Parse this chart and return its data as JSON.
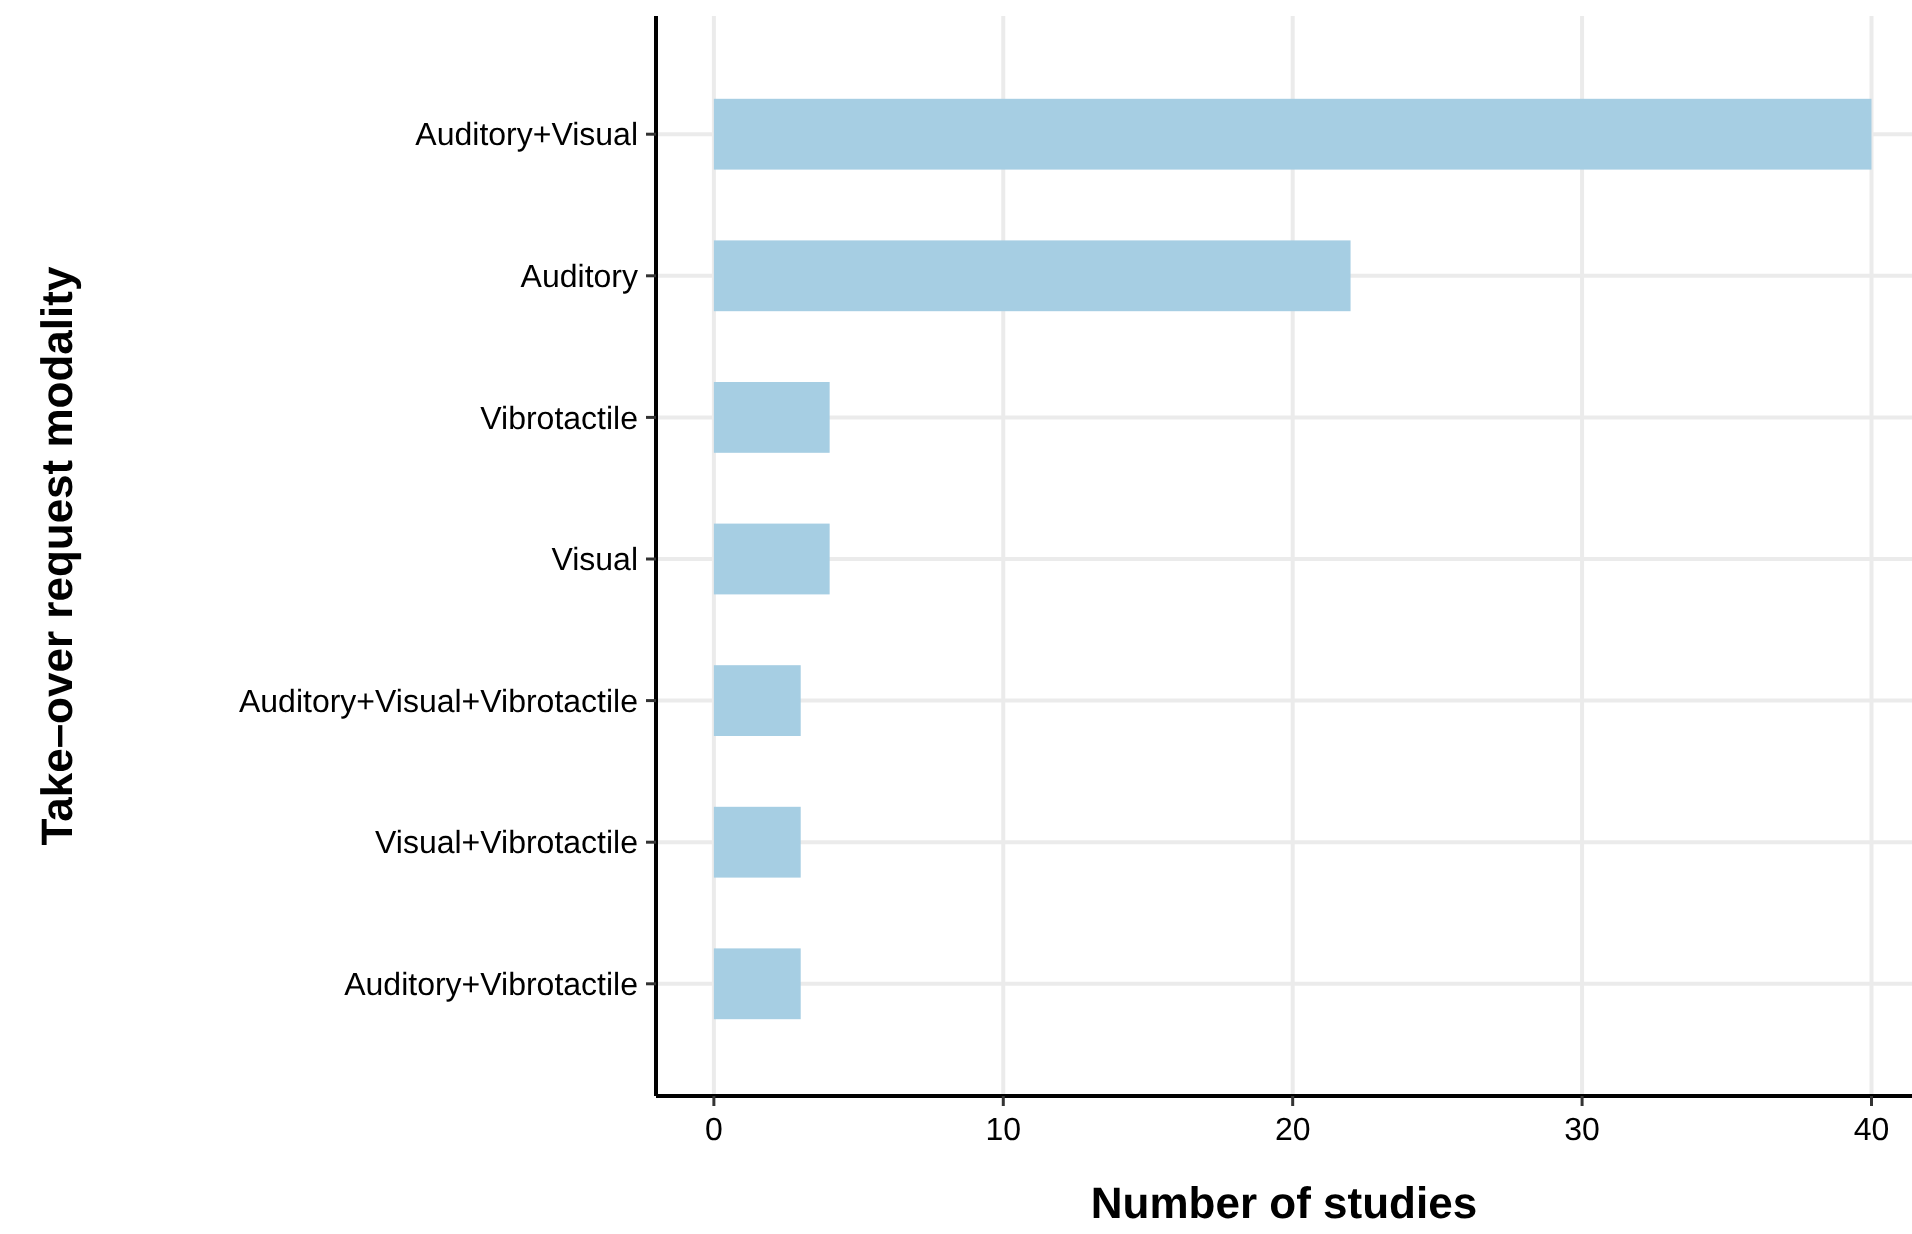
{
  "chart_data": {
    "type": "bar",
    "orientation": "horizontal",
    "xlabel": "Number of studies",
    "ylabel": "Take–over request modality",
    "categories": [
      "Auditory+Visual",
      "Auditory",
      "Vibrotactile",
      "Visual",
      "Auditory+Visual+Vibrotactile",
      "Visual+Vibrotactile",
      "Auditory+Vibrotactile"
    ],
    "values": [
      40,
      22,
      4,
      4,
      3,
      3,
      3
    ],
    "color": "#a6cee3",
    "xlim": [
      -2,
      41.4
    ],
    "xticks": [
      0,
      10,
      20,
      30,
      40
    ],
    "grid": true
  }
}
